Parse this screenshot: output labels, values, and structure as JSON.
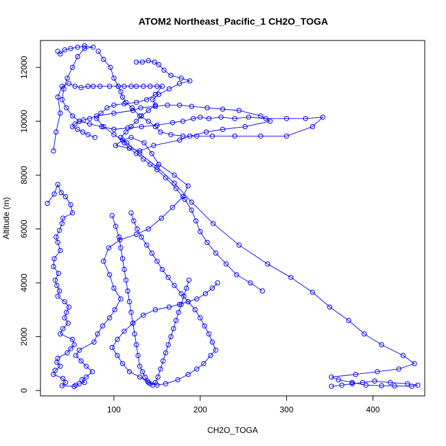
{
  "chart_data": {
    "type": "line",
    "title": "ATOM2 Northeast_Pacific_1 CH2O_TOGA",
    "xlabel": "CH2O_TOGA",
    "ylabel": "Altitude (m)",
    "xlim": [
      15,
      460
    ],
    "ylim": [
      -200,
      13000
    ],
    "xticks": [
      100,
      200,
      300,
      400
    ],
    "yticks": [
      0,
      2000,
      4000,
      6000,
      8000,
      10000,
      12000
    ],
    "grid": false,
    "legend": "none",
    "colors": {
      "series": "#0000ff"
    },
    "series": [
      {
        "x": [
          23,
          31,
          35,
          39,
          44,
          50,
          52,
          41,
          40,
          37,
          33,
          35,
          38,
          31,
          30,
          36,
          32,
          34,
          37,
          35,
          43,
          48,
          45,
          43,
          47,
          41,
          38,
          52,
          54,
          50,
          46,
          35,
          34,
          38,
          32,
          30,
          41,
          44,
          40,
          54,
          56,
          60,
          66,
          63,
          68,
          75,
          68,
          62,
          56,
          60,
          77,
          81,
          87,
          95,
          101,
          108,
          100,
          95,
          88,
          94,
          107,
          126,
          140,
          155,
          168,
          180,
          186,
          170,
          152,
          144,
          135,
          120,
          110,
          102,
          118,
          130,
          146,
          176,
          188,
          207,
          226,
          252,
          281,
          270,
          245,
          226,
          208,
          190,
          176,
          162,
          148,
          131,
          122,
          100,
          80,
          72,
          65,
          60,
          55,
          52,
          58,
          64,
          70,
          78
        ],
        "y": [
          6950,
          7300,
          7650,
          7350,
          7200,
          6900,
          6600,
          6400,
          6200,
          5950,
          5700,
          5500,
          5200,
          4900,
          4600,
          4350,
          4100,
          3900,
          3700,
          3500,
          3300,
          3100,
          2900,
          2700,
          2500,
          2300,
          2100,
          1900,
          1700,
          1550,
          1400,
          1200,
          1050,
          900,
          750,
          600,
          450,
          300,
          180,
          150,
          200,
          250,
          300,
          400,
          500,
          700,
          900,
          1100,
          1300,
          1500,
          1800,
          2100,
          2400,
          2700,
          3000,
          3400,
          3800,
          4300,
          4800,
          5300,
          5600,
          5800,
          6000,
          6400,
          6800,
          7200,
          7600,
          8000,
          8400,
          8800,
          9200,
          9400,
          9300,
          9100,
          9000,
          8900,
          9100,
          9300,
          9450,
          9600,
          9700,
          9800,
          10000,
          10200,
          10400,
          10450,
          10500,
          10550,
          10600,
          10600,
          10550,
          10500,
          10400,
          10300,
          10200,
          10100,
          10050,
          10000,
          9900,
          9800,
          9700,
          9600,
          9500,
          9400
        ]
      },
      {
        "x": [
          30,
          33,
          38,
          35,
          40,
          48,
          55,
          62,
          70,
          76,
          84,
          95,
          105,
          112,
          120,
          126,
          134,
          142,
          150,
          156,
          148,
          138,
          126,
          112,
          100,
          92,
          85,
          80,
          88,
          100,
          115,
          130,
          150,
          170,
          190,
          215,
          245,
          278,
          305,
          330,
          350,
          372,
          390,
          410,
          435,
          448,
          430,
          405,
          380,
          352,
          360,
          376,
          392,
          410,
          425,
          445,
          452,
          440,
          420,
          402,
          388,
          376,
          364,
          352
        ],
        "y": [
          8900,
          9600,
          10300,
          10900,
          11300,
          11400,
          11300,
          11250,
          11300,
          11300,
          11300,
          11300,
          11300,
          11300,
          11300,
          11300,
          11300,
          11300,
          11300,
          11300,
          11000,
          10800,
          10700,
          10650,
          10600,
          10500,
          10300,
          10100,
          9800,
          9500,
          9200,
          8800,
          8300,
          7700,
          7000,
          6200,
          5400,
          4700,
          4200,
          3650,
          3100,
          2600,
          2100,
          1700,
          1300,
          1000,
          800,
          700,
          600,
          500,
          400,
          300,
          200,
          180,
          170,
          160,
          200,
          250,
          300,
          350,
          300,
          250,
          200,
          160
        ]
      },
      {
        "x": [
          35,
          38,
          43,
          50,
          58,
          66,
          76,
          66,
          58,
          52,
          46,
          42,
          40,
          45,
          52,
          60,
          72,
          86,
          100,
          116,
          132,
          150,
          168,
          180,
          192,
          200,
          210,
          224,
          240,
          256,
          276,
          300,
          322,
          342,
          330,
          300,
          270,
          240,
          214,
          196,
          180,
          166,
          154,
          148,
          140,
          130,
          121,
          114,
          110,
          108,
          105,
          100,
          96,
          88,
          82
        ],
        "y": [
          12600,
          12500,
          12650,
          12700,
          12750,
          12800,
          12750,
          12700,
          12400,
          12000,
          11600,
          11200,
          10800,
          10500,
          10200,
          10000,
          9900,
          9800,
          9700,
          9750,
          9800,
          9850,
          9950,
          10000,
          10100,
          10150,
          10100,
          10150,
          10100,
          10150,
          10100,
          10100,
          10100,
          10150,
          9800,
          9450,
          9450,
          9450,
          9450,
          9450,
          9450,
          9500,
          9600,
          9800,
          10000,
          10200,
          10500,
          10700,
          10900,
          11100,
          11300,
          11600,
          12000,
          12300,
          12600
        ]
      },
      {
        "x": [
          126,
          133,
          140,
          147,
          152,
          158,
          166,
          178,
          188,
          176,
          164,
          152,
          145,
          148,
          140,
          132,
          126,
          120,
          114,
          108,
          112,
          118,
          126,
          134,
          142,
          150,
          160,
          172,
          182,
          190,
          195,
          200,
          208,
          218,
          230,
          242,
          258,
          272
        ],
        "y": [
          12200,
          12200,
          12250,
          12200,
          12100,
          11900,
          11700,
          11600,
          11500,
          11400,
          11200,
          11000,
          10800,
          10600,
          10400,
          10200,
          10000,
          9800,
          9600,
          9400,
          9200,
          9000,
          8800,
          8600,
          8400,
          8200,
          7900,
          7500,
          7100,
          6700,
          6300,
          5900,
          5500,
          5100,
          4700,
          4300,
          4000,
          3700
        ]
      },
      {
        "x": [
          120,
          123,
          127,
          132,
          138,
          144,
          150,
          156,
          163,
          170,
          178,
          186,
          194,
          200,
          205,
          210,
          214,
          218,
          212,
          204,
          196,
          186,
          174,
          160,
          150,
          140,
          130,
          118,
          110,
          104,
          98,
          104,
          112,
          122,
          134,
          148,
          164,
          176,
          186,
          196,
          206,
          214,
          220
        ],
        "y": [
          6600,
          6300,
          6000,
          5700,
          5400,
          5100,
          4800,
          4500,
          4200,
          3900,
          3600,
          3300,
          3000,
          2700,
          2400,
          2100,
          1800,
          1500,
          1300,
          1000,
          800,
          600,
          400,
          250,
          200,
          300,
          500,
          700,
          1000,
          1300,
          1600,
          1900,
          2200,
          2500,
          2800,
          3000,
          3100,
          3200,
          3300,
          3400,
          3600,
          3800,
          4000
        ]
      },
      {
        "x": [
          98,
          102,
          106,
          108,
          110,
          112,
          114,
          116,
          118,
          120,
          122,
          124,
          126,
          128,
          130,
          133,
          136,
          139,
          142,
          145,
          148,
          151,
          154,
          157,
          160,
          163,
          166,
          169,
          172,
          175,
          178,
          181,
          184,
          187
        ],
        "y": [
          6500,
          6100,
          5700,
          5300,
          4900,
          4500,
          4100,
          3700,
          3300,
          2900,
          2500,
          2100,
          1700,
          1300,
          900,
          700,
          500,
          350,
          250,
          200,
          300,
          500,
          800,
          1100,
          1400,
          1700,
          2000,
          2300,
          2600,
          2900,
          3200,
          3500,
          3800,
          4100
        ]
      }
    ]
  }
}
